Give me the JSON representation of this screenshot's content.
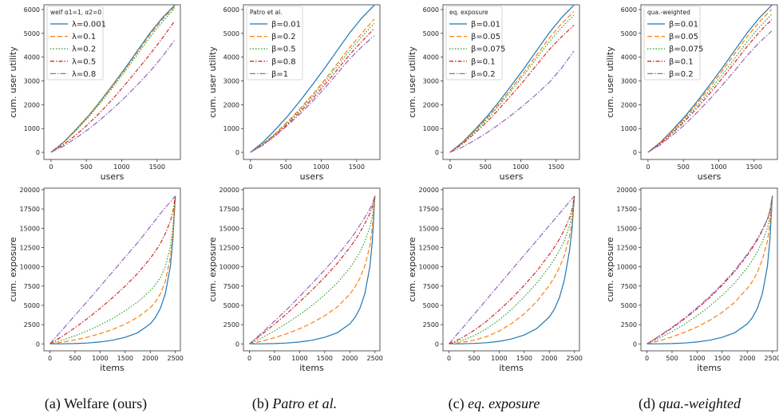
{
  "colors": [
    "#1f77b4",
    "#ff7f0e",
    "#2ca02c",
    "#d62728",
    "#9467bd"
  ],
  "captions": [
    {
      "prefix": "(a) ",
      "text": "Welfare (ours)",
      "italic": false
    },
    {
      "prefix": "(b) ",
      "text": "Patro et al.",
      "italic": true
    },
    {
      "prefix": "(c) ",
      "text": "eq. exposure",
      "italic": true
    },
    {
      "prefix": "(d) ",
      "text": "qua.-weighted",
      "italic": true
    }
  ],
  "chart_data": [
    {
      "type": "line",
      "panel": "a",
      "row": "top",
      "title": "",
      "xlabel": "users",
      "ylabel": "cum. user utility",
      "xlim": [
        -100,
        1830
      ],
      "ylim": [
        -300,
        6200
      ],
      "xticks": [
        0,
        500,
        1000,
        1500
      ],
      "yticks": [
        0,
        1000,
        2000,
        3000,
        4000,
        5000,
        6000
      ],
      "grid": false,
      "legend_position": "top-left",
      "legend_title": "welf α1=1, α2=0",
      "x": [
        0,
        175,
        350,
        525,
        700,
        875,
        1050,
        1225,
        1400,
        1575,
        1750
      ],
      "series": [
        {
          "name": "λ=0.001",
          "values": [
            0,
            420,
            950,
            1520,
            2160,
            2840,
            3540,
            4280,
            5010,
            5650,
            6180
          ]
        },
        {
          "name": "λ=0.1",
          "values": [
            0,
            410,
            930,
            1500,
            2130,
            2800,
            3490,
            4220,
            4940,
            5580,
            6120
          ]
        },
        {
          "name": "λ=0.2",
          "values": [
            0,
            400,
            900,
            1460,
            2080,
            2730,
            3420,
            4130,
            4840,
            5480,
            6050
          ]
        },
        {
          "name": "λ=0.5",
          "values": [
            0,
            320,
            720,
            1180,
            1690,
            2250,
            2850,
            3480,
            4120,
            4800,
            5520
          ]
        },
        {
          "name": "λ=0.8",
          "values": [
            0,
            260,
            590,
            960,
            1380,
            1830,
            2320,
            2850,
            3400,
            4020,
            4720
          ]
        }
      ]
    },
    {
      "type": "line",
      "panel": "b",
      "row": "top",
      "title": "",
      "xlabel": "users",
      "ylabel": "cum. user utility",
      "xlim": [
        -100,
        1830
      ],
      "ylim": [
        -300,
        6200
      ],
      "xticks": [
        0,
        500,
        1000,
        1500
      ],
      "yticks": [
        0,
        1000,
        2000,
        3000,
        4000,
        5000,
        6000
      ],
      "grid": false,
      "legend_position": "top-left",
      "legend_title": "Patro et al.",
      "x": [
        0,
        175,
        350,
        525,
        700,
        875,
        1050,
        1225,
        1400,
        1575,
        1750
      ],
      "series": [
        {
          "name": "β=0.01",
          "values": [
            0,
            420,
            950,
            1520,
            2160,
            2840,
            3540,
            4280,
            5010,
            5650,
            6180
          ]
        },
        {
          "name": "β=0.2",
          "values": [
            0,
            350,
            790,
            1290,
            1830,
            2420,
            3050,
            3720,
            4400,
            5000,
            5600
          ]
        },
        {
          "name": "β=0.5",
          "values": [
            0,
            340,
            770,
            1250,
            1780,
            2350,
            2960,
            3610,
            4270,
            4860,
            5420
          ]
        },
        {
          "name": "β=0.8",
          "values": [
            0,
            320,
            730,
            1190,
            1700,
            2250,
            2840,
            3460,
            4100,
            4660,
            5200
          ]
        },
        {
          "name": "β=1",
          "values": [
            0,
            300,
            690,
            1130,
            1610,
            2140,
            2700,
            3300,
            3920,
            4440,
            4900
          ]
        }
      ]
    },
    {
      "type": "line",
      "panel": "c",
      "row": "top",
      "title": "",
      "xlabel": "users",
      "ylabel": "cum. user utility",
      "xlim": [
        -100,
        1830
      ],
      "ylim": [
        -300,
        6200
      ],
      "xticks": [
        0,
        500,
        1000,
        1500
      ],
      "yticks": [
        0,
        1000,
        2000,
        3000,
        4000,
        5000,
        6000
      ],
      "grid": false,
      "legend_position": "top-left",
      "legend_title": "eq. exposure",
      "x": [
        0,
        175,
        350,
        525,
        700,
        875,
        1050,
        1225,
        1400,
        1575,
        1750
      ],
      "series": [
        {
          "name": "β=0.01",
          "values": [
            0,
            420,
            950,
            1520,
            2160,
            2840,
            3540,
            4280,
            5010,
            5650,
            6180
          ]
        },
        {
          "name": "β=0.05",
          "values": [
            0,
            395,
            900,
            1450,
            2060,
            2710,
            3380,
            4090,
            4790,
            5400,
            5920
          ]
        },
        {
          "name": "β=0.075",
          "values": [
            0,
            380,
            870,
            1400,
            1990,
            2620,
            3270,
            3960,
            4640,
            5230,
            5760
          ]
        },
        {
          "name": "β=0.1",
          "values": [
            0,
            350,
            800,
            1290,
            1840,
            2430,
            3030,
            3670,
            4310,
            4850,
            5340
          ]
        },
        {
          "name": "β=0.2",
          "values": [
            0,
            220,
            510,
            830,
            1190,
            1580,
            2000,
            2450,
            2930,
            3530,
            4250
          ]
        }
      ]
    },
    {
      "type": "line",
      "panel": "d",
      "row": "top",
      "title": "",
      "xlabel": "users",
      "ylabel": "cum. user utility",
      "xlim": [
        -100,
        1830
      ],
      "ylim": [
        -300,
        6200
      ],
      "xticks": [
        0,
        500,
        1000,
        1500
      ],
      "yticks": [
        0,
        1000,
        2000,
        3000,
        4000,
        5000,
        6000
      ],
      "grid": false,
      "legend_position": "top-left",
      "legend_title": "qua.-weighted",
      "x": [
        0,
        175,
        350,
        525,
        700,
        875,
        1050,
        1225,
        1400,
        1575,
        1750
      ],
      "series": [
        {
          "name": "β=0.01",
          "values": [
            0,
            420,
            950,
            1520,
            2160,
            2840,
            3540,
            4280,
            5010,
            5650,
            6180
          ]
        },
        {
          "name": "β=0.05",
          "values": [
            0,
            400,
            910,
            1460,
            2080,
            2740,
            3420,
            4140,
            4850,
            5480,
            6020
          ]
        },
        {
          "name": "β=0.075",
          "values": [
            0,
            380,
            860,
            1390,
            1980,
            2610,
            3260,
            3950,
            4640,
            5260,
            5800
          ]
        },
        {
          "name": "β=0.1",
          "values": [
            0,
            360,
            820,
            1320,
            1880,
            2480,
            3110,
            3770,
            4440,
            5050,
            5580
          ]
        },
        {
          "name": "β=0.2",
          "values": [
            0,
            320,
            730,
            1180,
            1690,
            2240,
            2820,
            3430,
            4060,
            4620,
            5100
          ]
        }
      ]
    },
    {
      "type": "line",
      "panel": "a",
      "row": "bottom",
      "title": "",
      "xlabel": "items",
      "ylabel": "cum. exposure",
      "xlim": [
        -120,
        2600
      ],
      "ylim": [
        -900,
        20200
      ],
      "xticks": [
        0,
        500,
        1000,
        1500,
        2000,
        2500
      ],
      "yticks": [
        0,
        2500,
        5000,
        7500,
        10000,
        12500,
        15000,
        17500,
        20000
      ],
      "grid": false,
      "legend_position": "none",
      "x": [
        0,
        250,
        500,
        750,
        1000,
        1250,
        1500,
        1750,
        2000,
        2100,
        2200,
        2300,
        2400,
        2450,
        2500
      ],
      "series": [
        {
          "name": "λ=0.001",
          "values": [
            0,
            10,
            40,
            110,
            250,
            480,
            850,
            1450,
            2600,
            3400,
            4600,
            6500,
            10000,
            13500,
            19200
          ]
        },
        {
          "name": "λ=0.1",
          "values": [
            0,
            220,
            520,
            880,
            1320,
            1870,
            2560,
            3450,
            4700,
            5450,
            6500,
            8100,
            11200,
            14200,
            19200
          ]
        },
        {
          "name": "λ=0.2",
          "values": [
            0,
            480,
            1050,
            1700,
            2450,
            3300,
            4300,
            5450,
            6900,
            7650,
            8600,
            10000,
            12600,
            15100,
            19200
          ]
        },
        {
          "name": "λ=0.5",
          "values": [
            0,
            1000,
            2100,
            3300,
            4600,
            6000,
            7500,
            9150,
            11100,
            12000,
            13000,
            14300,
            15900,
            17100,
            19200
          ]
        },
        {
          "name": "λ=0.8",
          "values": [
            0,
            1850,
            3700,
            5550,
            7450,
            9350,
            11250,
            13150,
            15200,
            16050,
            16900,
            17700,
            18400,
            18800,
            19200
          ]
        }
      ]
    },
    {
      "type": "line",
      "panel": "b",
      "row": "bottom",
      "title": "",
      "xlabel": "items",
      "ylabel": "cum. exposure",
      "xlim": [
        -120,
        2600
      ],
      "ylim": [
        -900,
        20200
      ],
      "xticks": [
        0,
        500,
        1000,
        1500,
        2000,
        2500
      ],
      "yticks": [
        0,
        2500,
        5000,
        7500,
        10000,
        12500,
        15000,
        17500,
        20000
      ],
      "grid": false,
      "legend_position": "none",
      "x": [
        0,
        250,
        500,
        750,
        1000,
        1250,
        1500,
        1750,
        2000,
        2100,
        2200,
        2300,
        2400,
        2450,
        2500
      ],
      "series": [
        {
          "name": "β=0.01",
          "values": [
            0,
            10,
            40,
            110,
            250,
            480,
            850,
            1450,
            2600,
            3400,
            4600,
            6500,
            10000,
            13500,
            19200
          ]
        },
        {
          "name": "β=0.2",
          "values": [
            0,
            350,
            800,
            1330,
            1970,
            2730,
            3650,
            4800,
            6450,
            7350,
            8500,
            10100,
            12700,
            15200,
            19200
          ]
        },
        {
          "name": "β=0.5",
          "values": [
            0,
            800,
            1700,
            2700,
            3800,
            5000,
            6350,
            7900,
            9850,
            10800,
            11900,
            13300,
            15100,
            16600,
            19200
          ]
        },
        {
          "name": "β=0.8",
          "values": [
            0,
            1250,
            2550,
            3950,
            5450,
            7000,
            8650,
            10450,
            12500,
            13400,
            14450,
            15600,
            16900,
            17800,
            19200
          ]
        },
        {
          "name": "β=1",
          "values": [
            0,
            1450,
            2950,
            4500,
            6150,
            7850,
            9600,
            11450,
            13500,
            14400,
            15400,
            16400,
            17500,
            18200,
            19200
          ]
        }
      ]
    },
    {
      "type": "line",
      "panel": "c",
      "row": "bottom",
      "title": "",
      "xlabel": "items",
      "ylabel": "cum. exposure",
      "xlim": [
        -120,
        2600
      ],
      "ylim": [
        -900,
        20200
      ],
      "xticks": [
        0,
        500,
        1000,
        1500,
        2000,
        2500
      ],
      "yticks": [
        0,
        2500,
        5000,
        7500,
        10000,
        12500,
        15000,
        17500,
        20000
      ],
      "grid": false,
      "legend_position": "none",
      "x": [
        0,
        250,
        500,
        750,
        1000,
        1250,
        1500,
        1750,
        2000,
        2100,
        2200,
        2300,
        2400,
        2450,
        2500
      ],
      "series": [
        {
          "name": "β=0.01",
          "values": [
            0,
            15,
            60,
            150,
            330,
            640,
            1150,
            2000,
            3500,
            4500,
            6000,
            8300,
            12000,
            14800,
            19200
          ]
        },
        {
          "name": "β=0.05",
          "values": [
            0,
            180,
            480,
            950,
            1650,
            2650,
            3900,
            5500,
            7600,
            8650,
            9900,
            11500,
            13900,
            15800,
            19200
          ]
        },
        {
          "name": "β=0.075",
          "values": [
            0,
            420,
            1050,
            1950,
            3100,
            4500,
            6100,
            7900,
            10000,
            11000,
            12100,
            13400,
            15300,
            16700,
            19200
          ]
        },
        {
          "name": "β=0.1",
          "values": [
            0,
            750,
            1750,
            2950,
            4350,
            5900,
            7600,
            9450,
            11600,
            12550,
            13600,
            14800,
            16300,
            17400,
            19200
          ]
        },
        {
          "name": "β=0.2",
          "values": [
            0,
            1920,
            3840,
            5760,
            7680,
            9600,
            11520,
            13440,
            15360,
            16130,
            16900,
            17660,
            18430,
            18810,
            19200
          ]
        }
      ]
    },
    {
      "type": "line",
      "panel": "d",
      "row": "bottom",
      "title": "",
      "xlabel": "items",
      "ylabel": "cum. exposure",
      "xlim": [
        -120,
        2600
      ],
      "ylim": [
        -900,
        20200
      ],
      "xticks": [
        0,
        500,
        1000,
        1500,
        2000,
        2500
      ],
      "yticks": [
        0,
        2500,
        5000,
        7500,
        10000,
        12500,
        15000,
        17500,
        20000
      ],
      "grid": false,
      "legend_position": "none",
      "x": [
        0,
        250,
        500,
        750,
        1000,
        1250,
        1500,
        1750,
        2000,
        2100,
        2200,
        2300,
        2400,
        2450,
        2500
      ],
      "series": [
        {
          "name": "β=0.01",
          "values": [
            0,
            10,
            40,
            110,
            250,
            480,
            850,
            1450,
            2600,
            3400,
            4600,
            6500,
            10000,
            13500,
            19200
          ]
        },
        {
          "name": "β=0.05",
          "values": [
            0,
            400,
            900,
            1500,
            2200,
            3050,
            4100,
            5400,
            7200,
            8100,
            9300,
            10900,
            13300,
            15500,
            19200
          ]
        },
        {
          "name": "β=0.075",
          "values": [
            0,
            750,
            1600,
            2550,
            3650,
            4900,
            6300,
            7900,
            9900,
            10850,
            11950,
            13250,
            15000,
            16500,
            19200
          ]
        },
        {
          "name": "β=0.1",
          "values": [
            0,
            1000,
            2050,
            3250,
            4550,
            6000,
            7600,
            9400,
            11500,
            12450,
            13500,
            14700,
            16100,
            17200,
            19200
          ]
        },
        {
          "name": "β=0.2",
          "values": [
            0,
            1050,
            2150,
            3350,
            4700,
            6150,
            7750,
            9550,
            11650,
            12600,
            13650,
            14800,
            16200,
            17300,
            19200
          ]
        }
      ]
    }
  ]
}
